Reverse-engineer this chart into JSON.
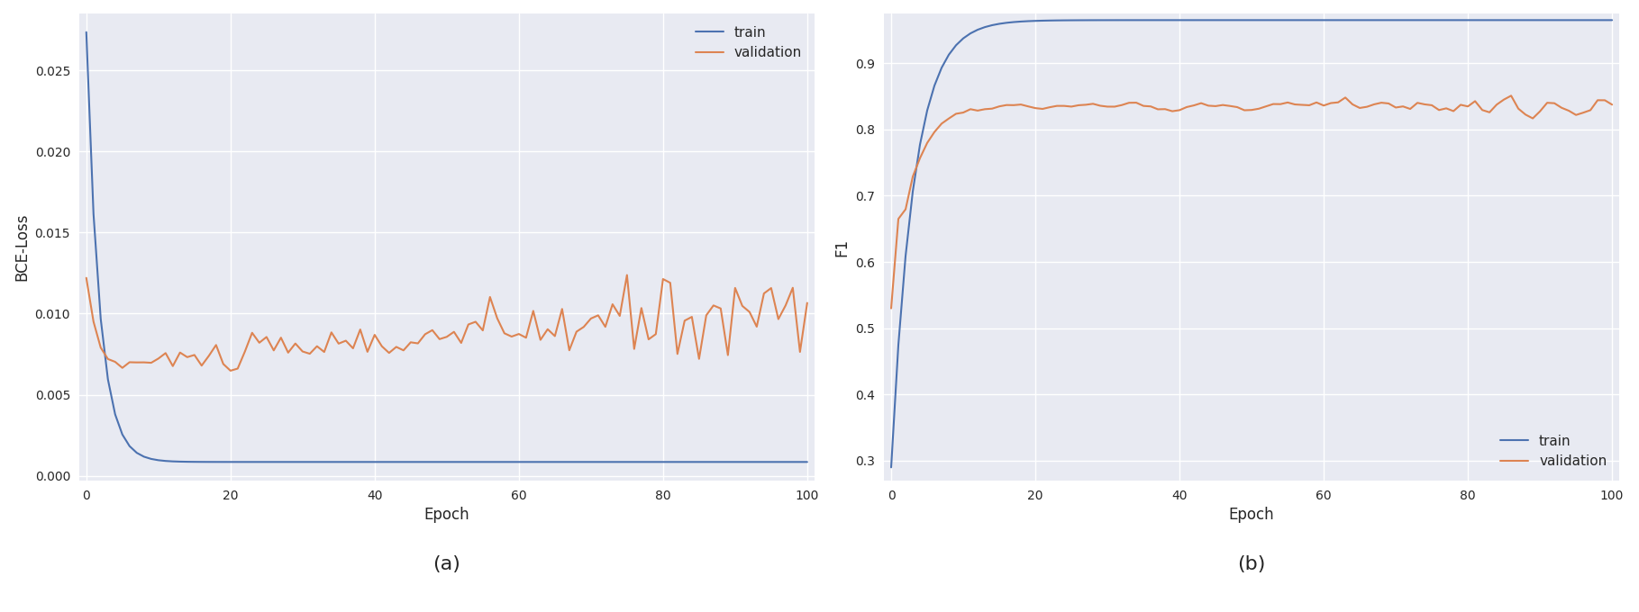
{
  "fig_width": 18.19,
  "fig_height": 6.8,
  "dpi": 100,
  "plot_bg_color": "#e8eaf2",
  "blue_color": "#4c72b0",
  "orange_color": "#dd8452",
  "grid_color": "white",
  "label_a": "(a)",
  "label_b": "(b)",
  "subplot_a": {
    "xlabel": "Epoch",
    "ylabel": "BCE-Loss",
    "ylim": [
      -0.0003,
      0.0285
    ],
    "xlim": [
      -1,
      101
    ],
    "yticks": [
      0.0,
      0.005,
      0.01,
      0.015,
      0.02,
      0.025
    ],
    "xticks": [
      0,
      20,
      40,
      60,
      80,
      100
    ],
    "legend_loc": "upper right",
    "legend_labels": [
      "train",
      "validation"
    ]
  },
  "subplot_b": {
    "xlabel": "Epoch",
    "ylabel": "F1",
    "ylim": [
      0.27,
      0.975
    ],
    "xlim": [
      -1,
      101
    ],
    "yticks": [
      0.3,
      0.4,
      0.5,
      0.6,
      0.7,
      0.8,
      0.9
    ],
    "xticks": [
      0,
      20,
      40,
      60,
      80,
      100
    ],
    "legend_loc": "lower right",
    "legend_labels": [
      "train",
      "validation"
    ]
  }
}
